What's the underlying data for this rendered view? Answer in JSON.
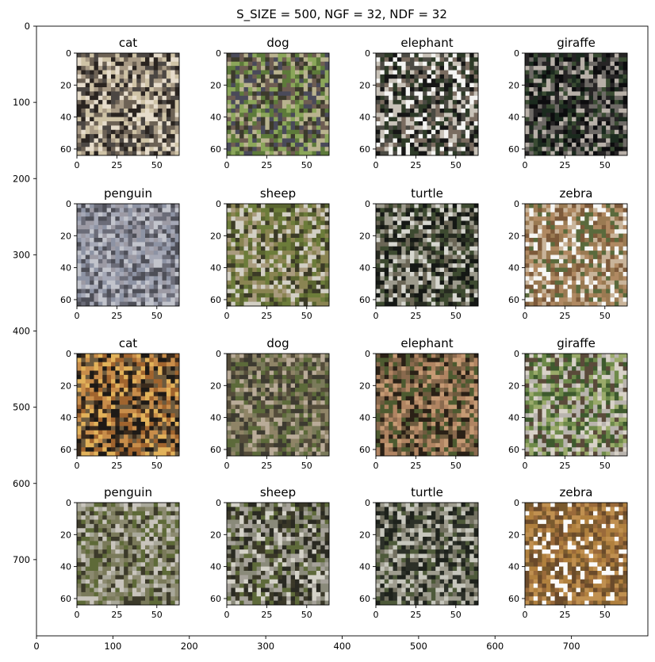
{
  "chart_data": {
    "type": "image-grid",
    "title": "S_SIZE = 500, NGF = 32, NDF = 32",
    "outer_axes": {
      "xlim": [
        0,
        800
      ],
      "ylim": [
        800,
        0
      ],
      "xticks": [
        0,
        100,
        200,
        300,
        400,
        500,
        600,
        700
      ],
      "yticks": [
        0,
        100,
        200,
        300,
        400,
        500,
        600,
        700
      ]
    },
    "panel_axes": {
      "xlim": [
        0,
        64
      ],
      "ylim": [
        64,
        0
      ],
      "xticks": [
        0,
        25,
        50
      ],
      "yticks": [
        0,
        20,
        40,
        60
      ]
    },
    "grid": false,
    "panels": [
      {
        "label": "cat",
        "palette": [
          "#2a2420",
          "#6d6255",
          "#cfc3a6",
          "#a89a85",
          "#4c4743",
          "#e6dccb"
        ]
      },
      {
        "label": "dog",
        "palette": [
          "#3c3a2c",
          "#5d7a3a",
          "#8ba65a",
          "#6e5d52",
          "#4a4a5a",
          "#b9b38f"
        ]
      },
      {
        "label": "elephant",
        "palette": [
          "#161616",
          "#f4f4f2",
          "#4b4a43",
          "#7a6c60",
          "#2e3b28",
          "#c8c2b8"
        ]
      },
      {
        "label": "giraffe",
        "palette": [
          "#0c0c0e",
          "#1b2a1e",
          "#6e6a66",
          "#3a4b33",
          "#b8b0a8",
          "#262425"
        ]
      },
      {
        "label": "penguin",
        "palette": [
          "#8d93a4",
          "#a5a8b6",
          "#6b6c78",
          "#c2c4cc",
          "#4e4f58",
          "#9c9aa4"
        ]
      },
      {
        "label": "sheep",
        "palette": [
          "#5a6530",
          "#8a8452",
          "#d2cfc4",
          "#3b3a26",
          "#a99b7e",
          "#6c7c3a"
        ]
      },
      {
        "label": "turtle",
        "palette": [
          "#151815",
          "#d6d6cf",
          "#3d4a30",
          "#6b6656",
          "#262a20",
          "#9c9a8c"
        ]
      },
      {
        "label": "zebra",
        "palette": [
          "#f6f6f4",
          "#7d5a3a",
          "#9a7a52",
          "#5a6a3c",
          "#c9b49a",
          "#b08962"
        ]
      },
      {
        "label": "cat",
        "palette": [
          "#3a2a1c",
          "#a0642e",
          "#e2b25a",
          "#6c5a3e",
          "#1e1a16",
          "#c88d4a"
        ]
      },
      {
        "label": "dog",
        "palette": [
          "#544c3a",
          "#7a7a5a",
          "#8f8467",
          "#5c6a3a",
          "#b9ab98",
          "#3d3a30"
        ]
      },
      {
        "label": "elephant",
        "palette": [
          "#8a6a4e",
          "#c59a74",
          "#2a2016",
          "#6e5a3e",
          "#b08462",
          "#4d5a30"
        ]
      },
      {
        "label": "giraffe",
        "palette": [
          "#d8d2c8",
          "#6e8a4a",
          "#9aaa6a",
          "#5a4a3a",
          "#b9b4ae",
          "#3e5a2e"
        ]
      },
      {
        "label": "penguin",
        "palette": [
          "#7a7a5a",
          "#a9a89a",
          "#5e6a38",
          "#c8c4bc",
          "#3c3a2a",
          "#8c8a70"
        ]
      },
      {
        "label": "sheep",
        "palette": [
          "#3a3828",
          "#d4d2c8",
          "#8a8a7a",
          "#5e6a3a",
          "#a6a29a",
          "#2a2a22"
        ]
      },
      {
        "label": "turtle",
        "palette": [
          "#1e221c",
          "#c6c6bc",
          "#4e5a3a",
          "#727060",
          "#2c3028",
          "#9e9c8e"
        ]
      },
      {
        "label": "zebra",
        "palette": [
          "#fbfbfa",
          "#9a6a3a",
          "#7a5a2e",
          "#b0803e",
          "#6a4a2a",
          "#c09050"
        ]
      }
    ]
  }
}
